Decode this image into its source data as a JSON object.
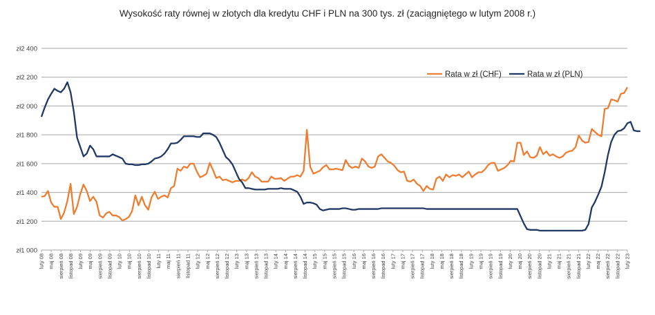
{
  "chart_data": {
    "type": "line",
    "title": "Wysokość raty równej w złotych dla kredytu CHF i PLN na 300 tys. zł (zaciągniętego w lutym 2008 r.)",
    "xlabel": "",
    "ylabel": "",
    "ylim": [
      1000,
      2400
    ],
    "y_ticks": [
      1000,
      1200,
      1400,
      1600,
      1800,
      2000,
      2200,
      2400
    ],
    "y_tick_labels": [
      "zł1 000",
      "zł1 200",
      "zł1 400",
      "zł1 600",
      "zł1 800",
      "zł2 000",
      "zł2 200",
      "zł2 400"
    ],
    "grid": true,
    "legend_position": "top-right",
    "colors": {
      "chf": "#ED7D31",
      "pln": "#203864",
      "grid": "#A6A6A6"
    },
    "x_tick_labels": [
      "luty 08",
      "maj 08",
      "sierpień 08",
      "listopad 08",
      "luty 09",
      "maj 09",
      "sierpień 09",
      "listopad 09",
      "luty 10",
      "maj 10",
      "sierpień 10",
      "listopad 10",
      "luty 11",
      "maj 11",
      "sierpień 11",
      "listopad 11",
      "luty 12",
      "maj 12",
      "sierpień 12",
      "listopad 12",
      "luty 13",
      "maj 13",
      "sierpień 13",
      "listopad 13",
      "luty 14",
      "maj 14",
      "sierpień 14",
      "listopad 14",
      "luty 15",
      "maj 15",
      "sierpień 15",
      "listopad 15",
      "luty 16",
      "maj 16",
      "sierpień 16",
      "listopad 16",
      "luty 17",
      "maj 17",
      "sierpień 17",
      "listopad 17",
      "luty 18",
      "maj 18",
      "sierpień 18",
      "listopad 18",
      "luty 19",
      "maj 19",
      "sierpień 19",
      "listopad 19",
      "luty 20",
      "maj 20",
      "sierpień 20",
      "listopad 20",
      "luty 21",
      "maj 21",
      "sierpień 21",
      "listopad 21",
      "luty 22",
      "maj 22",
      "sierpień 22",
      "listopad 22",
      "luty 23"
    ],
    "series": [
      {
        "name": "Rata w zł (CHF)",
        "values": [
          1370,
          1375,
          1410,
          1330,
          1300,
          1300,
          1215,
          1260,
          1340,
          1460,
          1250,
          1300,
          1390,
          1455,
          1410,
          1340,
          1370,
          1335,
          1240,
          1225,
          1255,
          1265,
          1240,
          1240,
          1230,
          1205,
          1215,
          1230,
          1270,
          1380,
          1310,
          1370,
          1310,
          1280,
          1365,
          1405,
          1355,
          1370,
          1380,
          1365,
          1430,
          1445,
          1565,
          1550,
          1580,
          1570,
          1600,
          1600,
          1545,
          1505,
          1515,
          1530,
          1605,
          1555,
          1500,
          1510,
          1485,
          1490,
          1480,
          1470,
          1480,
          1480,
          1490,
          1480,
          1500,
          1540,
          1510,
          1500,
          1475,
          1475,
          1475,
          1510,
          1495,
          1495,
          1500,
          1480,
          1495,
          1510,
          1510,
          1520,
          1510,
          1550,
          1835,
          1580,
          1530,
          1540,
          1550,
          1575,
          1590,
          1560,
          1560,
          1565,
          1560,
          1555,
          1625,
          1585,
          1570,
          1580,
          1570,
          1635,
          1615,
          1580,
          1570,
          1580,
          1650,
          1665,
          1640,
          1615,
          1605,
          1585,
          1555,
          1540,
          1545,
          1480,
          1475,
          1490,
          1460,
          1445,
          1410,
          1445,
          1425,
          1420,
          1495,
          1510,
          1480,
          1525,
          1505,
          1520,
          1515,
          1525,
          1505,
          1525,
          1545,
          1505,
          1525,
          1540,
          1540,
          1560,
          1590,
          1605,
          1605,
          1550,
          1560,
          1570,
          1590,
          1620,
          1615,
          1745,
          1745,
          1660,
          1685,
          1645,
          1640,
          1655,
          1715,
          1665,
          1685,
          1655,
          1665,
          1650,
          1640,
          1650,
          1675,
          1685,
          1690,
          1715,
          1795,
          1760,
          1745,
          1750,
          1840,
          1820,
          1800,
          1790,
          1980,
          1985,
          2045,
          2040,
          2030,
          2085,
          2090,
          2130
        ]
      },
      {
        "name": "Rata w zł (PLN)",
        "values": [
          1925,
          1990,
          2045,
          2085,
          2120,
          2105,
          2095,
          2120,
          2165,
          2095,
          1960,
          1780,
          1715,
          1650,
          1670,
          1725,
          1700,
          1650,
          1650,
          1650,
          1650,
          1650,
          1665,
          1655,
          1645,
          1635,
          1600,
          1595,
          1595,
          1590,
          1590,
          1595,
          1595,
          1600,
          1615,
          1635,
          1640,
          1650,
          1670,
          1700,
          1740,
          1740,
          1745,
          1765,
          1790,
          1790,
          1790,
          1790,
          1785,
          1785,
          1810,
          1810,
          1810,
          1800,
          1785,
          1745,
          1695,
          1645,
          1625,
          1595,
          1545,
          1495,
          1470,
          1430,
          1430,
          1425,
          1420,
          1420,
          1420,
          1420,
          1425,
          1425,
          1425,
          1425,
          1430,
          1425,
          1425,
          1425,
          1415,
          1405,
          1370,
          1320,
          1330,
          1330,
          1325,
          1315,
          1285,
          1275,
          1280,
          1285,
          1285,
          1285,
          1285,
          1290,
          1290,
          1285,
          1280,
          1280,
          1285,
          1285,
          1285,
          1285,
          1285,
          1285,
          1285,
          1290,
          1290,
          1290,
          1290,
          1290,
          1290,
          1290,
          1290,
          1290,
          1290,
          1290,
          1290,
          1290,
          1290,
          1285,
          1285,
          1285,
          1285,
          1285,
          1285,
          1285,
          1285,
          1285,
          1285,
          1285,
          1285,
          1285,
          1285,
          1285,
          1285,
          1285,
          1285,
          1285,
          1285,
          1285,
          1285,
          1285,
          1285,
          1285,
          1285,
          1285,
          1285,
          1285,
          1235,
          1185,
          1145,
          1140,
          1140,
          1140,
          1135,
          1135,
          1135,
          1135,
          1135,
          1135,
          1135,
          1135,
          1135,
          1135,
          1135,
          1135,
          1135,
          1135,
          1140,
          1180,
          1295,
          1335,
          1385,
          1440,
          1540,
          1660,
          1750,
          1800,
          1825,
          1830,
          1845,
          1880,
          1890,
          1830,
          1825,
          1825
        ]
      }
    ]
  }
}
